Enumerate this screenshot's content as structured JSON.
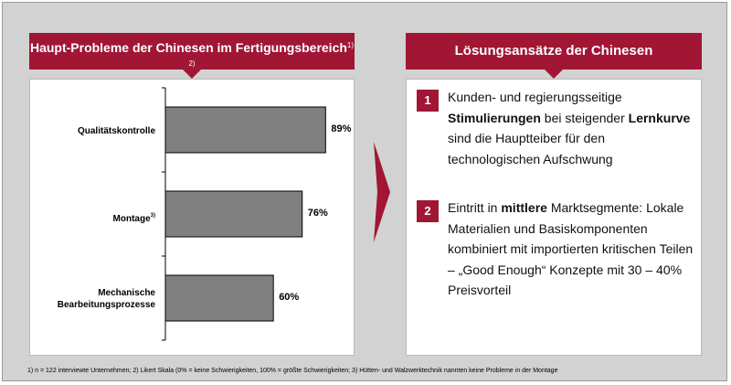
{
  "left": {
    "title_main": "Haupt-Probleme der Chinesen im Fertigungsbereich",
    "title_sup": "1) 2)"
  },
  "right": {
    "title": "Lösungsansätze der Chinesen",
    "items": [
      {
        "number": "1",
        "t1": "Kunden- und regierungsseitige ",
        "b1": "Stimulierungen",
        "t2": " bei steigender ",
        "b2": "Lernkurve",
        "t3": " sind die Hauptteiber für den technologischen Aufschwung"
      },
      {
        "number": "2",
        "t1": "Eintritt in ",
        "b1": "mittlere",
        "t2": " Marktsegmente: Lokale Materialien und Basiskomponenten kombiniert mit importierten kritischen Teilen – „Good Enough“ Konzepte mit 30 – 40% Preisvorteil"
      }
    ]
  },
  "chart_data": {
    "type": "bar",
    "orientation": "horizontal",
    "categories": [
      "Qualitätskontrolle",
      "Montage",
      "Mechanische Bearbeitungsprozesse"
    ],
    "category_sups": [
      "",
      "3)",
      ""
    ],
    "values": [
      89,
      76,
      60
    ],
    "value_labels": [
      "89%",
      "76%",
      "60%"
    ],
    "xlim": [
      0,
      100
    ],
    "bar_color": "#808080"
  },
  "colors": {
    "accent": "#a01634",
    "frame": "#d2d2d2"
  },
  "footnote": "1) n = 122 interviewte Unternehmen; 2) Likert Skala (0% = keine Schwierigkeiten, 100% = größte Schwierigkeiten; 3) Hütten- und Walzwerktechnik nannten keine Probleme in der Montage"
}
